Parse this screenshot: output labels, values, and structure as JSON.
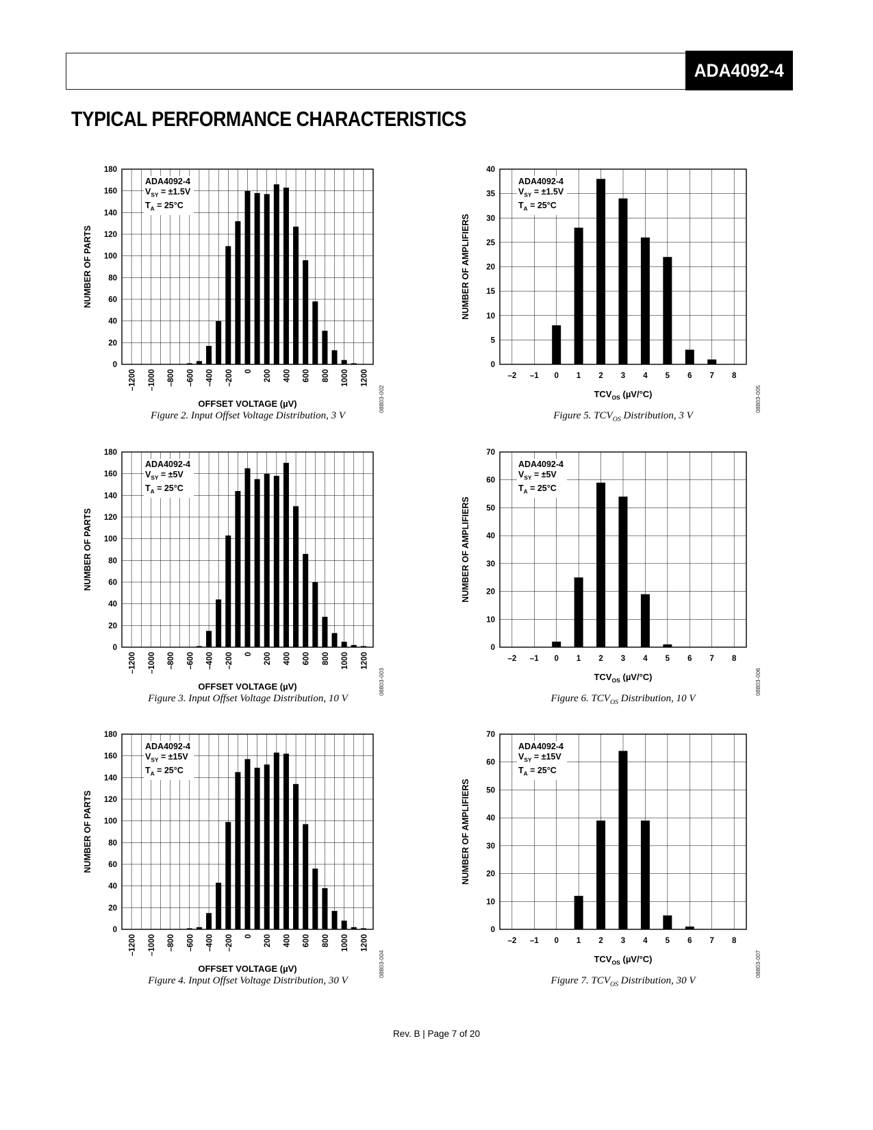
{
  "page": {
    "header_title": "ADA4092-4",
    "section_title": "TYPICAL PERFORMANCE CHARACTERISTICS",
    "footer": "Rev. B | Page 7 of 20"
  },
  "chart_data": [
    {
      "id": "fig2",
      "type": "bar",
      "kind": "offset",
      "title": "Input Offset Voltage Distribution, 3 V",
      "ylabel": "NUMBER OF PARTS",
      "xlabel_parts": [
        {
          "t": "OFFSET VOLTAGE (µV)"
        }
      ],
      "ylim": [
        0,
        180
      ],
      "ystep": 20,
      "xlim": [
        -1300,
        1300
      ],
      "xgrid_step": 100,
      "x_tick_values": [
        -1200,
        -1000,
        -800,
        -600,
        -400,
        -200,
        0,
        200,
        400,
        600,
        800,
        1000,
        1200
      ],
      "x_tick_labels": [
        "–1200",
        "–1000",
        "–800",
        "–600",
        "–400",
        "–200",
        "0",
        "200",
        "400",
        "600",
        "800",
        "1000",
        "1200"
      ],
      "bars_x": [
        -600,
        -500,
        -400,
        -300,
        -200,
        -100,
        0,
        100,
        200,
        300,
        400,
        500,
        600,
        700,
        800,
        900,
        1000,
        1100
      ],
      "bars_y": [
        1,
        3,
        17,
        40,
        109,
        132,
        160,
        158,
        157,
        166,
        163,
        127,
        96,
        58,
        31,
        13,
        4,
        1
      ],
      "annotation": [
        [
          {
            "t": "ADA4092-4"
          }
        ],
        [
          {
            "t": "V"
          },
          {
            "s": "SY"
          },
          {
            "t": " = ±1.5V"
          }
        ],
        [
          {
            "t": "T"
          },
          {
            "s": "A"
          },
          {
            "t": " = 25°C"
          }
        ]
      ],
      "caption_parts": [
        {
          "t": "Figure 2. Input Offset Voltage Distribution, 3 V"
        }
      ],
      "side_id": "08803-002"
    },
    {
      "id": "fig5",
      "type": "bar",
      "kind": "tcv",
      "title": "TCVOS Distribution, 3 V",
      "ylabel": "NUMBER OF AMPLIFIERS",
      "xlabel_parts": [
        {
          "t": "TCV"
        },
        {
          "s": "OS"
        },
        {
          "t": " (µV/°C)"
        }
      ],
      "ylim": [
        0,
        40
      ],
      "ystep": 5,
      "xlim": [
        -2.55,
        8.55
      ],
      "xgrid_step": 1,
      "x_tick_values": [
        -2,
        -1,
        0,
        1,
        2,
        3,
        4,
        5,
        6,
        7,
        8
      ],
      "x_tick_labels": [
        "–2",
        "–1",
        "0",
        "1",
        "2",
        "3",
        "4",
        "5",
        "6",
        "7",
        "8"
      ],
      "bars_x": [
        0,
        1,
        2,
        3,
        4,
        5,
        6,
        7
      ],
      "bars_y": [
        8,
        28,
        38,
        34,
        26,
        22,
        3,
        1
      ],
      "annotation": [
        [
          {
            "t": "ADA4092-4"
          }
        ],
        [
          {
            "t": "V"
          },
          {
            "s": "SY"
          },
          {
            "t": " = ±1.5V"
          }
        ],
        [
          {
            "t": "T"
          },
          {
            "s": "A"
          },
          {
            "t": " = 25°C"
          }
        ]
      ],
      "caption_parts": [
        {
          "t": "Figure 5. TCV"
        },
        {
          "s": "OS"
        },
        {
          "t": " Distribution, 3 V"
        }
      ],
      "side_id": "08803-005"
    },
    {
      "id": "fig3",
      "type": "bar",
      "kind": "offset",
      "title": "Input Offset Voltage Distribution, 10 V",
      "ylabel": "NUMBER OF PARTS",
      "xlabel_parts": [
        {
          "t": "OFFSET VOLTAGE (µV)"
        }
      ],
      "ylim": [
        0,
        180
      ],
      "ystep": 20,
      "xlim": [
        -1300,
        1300
      ],
      "xgrid_step": 100,
      "x_tick_values": [
        -1200,
        -1000,
        -800,
        -600,
        -400,
        -200,
        0,
        200,
        400,
        600,
        800,
        1000,
        1200
      ],
      "x_tick_labels": [
        "–1200",
        "–1000",
        "–800",
        "–600",
        "–400",
        "–200",
        "0",
        "200",
        "400",
        "600",
        "800",
        "1000",
        "1200"
      ],
      "bars_x": [
        -500,
        -400,
        -300,
        -200,
        -100,
        0,
        100,
        200,
        300,
        400,
        500,
        600,
        700,
        800,
        900,
        1000,
        1100,
        1200
      ],
      "bars_y": [
        1,
        15,
        44,
        103,
        144,
        165,
        155,
        160,
        158,
        170,
        130,
        86,
        60,
        28,
        13,
        5,
        2,
        1
      ],
      "annotation": [
        [
          {
            "t": "ADA4092-4"
          }
        ],
        [
          {
            "t": "V"
          },
          {
            "s": "SY"
          },
          {
            "t": " = ±5V"
          }
        ],
        [
          {
            "t": "T"
          },
          {
            "s": "A"
          },
          {
            "t": " = 25°C"
          }
        ]
      ],
      "caption_parts": [
        {
          "t": "Figure 3. Input Offset Voltage Distribution, 10 V"
        }
      ],
      "side_id": "08803-003"
    },
    {
      "id": "fig6",
      "type": "bar",
      "kind": "tcv",
      "title": "TCVOS Distribution, 10 V",
      "ylabel": "NUMBER OF AMPLIFIERS",
      "xlabel_parts": [
        {
          "t": "TCV"
        },
        {
          "s": "OS"
        },
        {
          "t": " (µV/°C)"
        }
      ],
      "ylim": [
        0,
        70
      ],
      "ystep": 10,
      "xlim": [
        -2.55,
        8.55
      ],
      "xgrid_step": 1,
      "x_tick_values": [
        -2,
        -1,
        0,
        1,
        2,
        3,
        4,
        5,
        6,
        7,
        8
      ],
      "x_tick_labels": [
        "–2",
        "–1",
        "0",
        "1",
        "2",
        "3",
        "4",
        "5",
        "6",
        "7",
        "8"
      ],
      "bars_x": [
        0,
        1,
        2,
        3,
        4,
        5
      ],
      "bars_y": [
        2,
        25,
        59,
        54,
        19,
        1
      ],
      "annotation": [
        [
          {
            "t": "ADA4092-4"
          }
        ],
        [
          {
            "t": "V"
          },
          {
            "s": "SY"
          },
          {
            "t": " = ±5V"
          }
        ],
        [
          {
            "t": "T"
          },
          {
            "s": "A"
          },
          {
            "t": " = 25°C"
          }
        ]
      ],
      "caption_parts": [
        {
          "t": "Figure 6. TCV"
        },
        {
          "s": "OS"
        },
        {
          "t": " Distribution, 10 V"
        }
      ],
      "side_id": "08803-006"
    },
    {
      "id": "fig4",
      "type": "bar",
      "kind": "offset",
      "title": "Input Offset Voltage Distribution, 30 V",
      "ylabel": "NUMBER OF PARTS",
      "xlabel_parts": [
        {
          "t": "OFFSET VOLTAGE (µV)"
        }
      ],
      "ylim": [
        0,
        180
      ],
      "ystep": 20,
      "xlim": [
        -1300,
        1300
      ],
      "xgrid_step": 100,
      "x_tick_values": [
        -1200,
        -1000,
        -800,
        -600,
        -400,
        -200,
        0,
        200,
        400,
        600,
        800,
        1000,
        1200
      ],
      "x_tick_labels": [
        "–1200",
        "–1000",
        "–800",
        "–600",
        "–400",
        "–200",
        "0",
        "200",
        "400",
        "600",
        "800",
        "1000",
        "1200"
      ],
      "bars_x": [
        -600,
        -500,
        -400,
        -300,
        -200,
        -100,
        0,
        100,
        200,
        300,
        400,
        500,
        600,
        700,
        800,
        900,
        1000,
        1100,
        1200
      ],
      "bars_y": [
        1,
        2,
        15,
        43,
        99,
        145,
        157,
        149,
        152,
        163,
        162,
        134,
        97,
        56,
        38,
        17,
        8,
        2,
        1
      ],
      "annotation": [
        [
          {
            "t": "ADA4092-4"
          }
        ],
        [
          {
            "t": "V"
          },
          {
            "s": "SY"
          },
          {
            "t": " = ±15V"
          }
        ],
        [
          {
            "t": "T"
          },
          {
            "s": "A"
          },
          {
            "t": " = 25°C"
          }
        ]
      ],
      "caption_parts": [
        {
          "t": "Figure 4. Input Offset Voltage Distribution, 30 V"
        }
      ],
      "side_id": "08803-004"
    },
    {
      "id": "fig7",
      "type": "bar",
      "kind": "tcv",
      "title": "TCVOS Distribution, 30 V",
      "ylabel": "NUMBER OF AMPLIFIERS",
      "xlabel_parts": [
        {
          "t": "TCV"
        },
        {
          "s": "OS"
        },
        {
          "t": " (µV/°C)"
        }
      ],
      "ylim": [
        0,
        70
      ],
      "ystep": 10,
      "xlim": [
        -2.55,
        8.55
      ],
      "xgrid_step": 1,
      "x_tick_values": [
        -2,
        -1,
        0,
        1,
        2,
        3,
        4,
        5,
        6,
        7,
        8
      ],
      "x_tick_labels": [
        "–2",
        "–1",
        "0",
        "1",
        "2",
        "3",
        "4",
        "5",
        "6",
        "7",
        "8"
      ],
      "bars_x": [
        1,
        2,
        3,
        4,
        5,
        6
      ],
      "bars_y": [
        12,
        39,
        64,
        39,
        5,
        1
      ],
      "annotation": [
        [
          {
            "t": "ADA4092-4"
          }
        ],
        [
          {
            "t": "V"
          },
          {
            "s": "SY"
          },
          {
            "t": " = ±15V"
          }
        ],
        [
          {
            "t": "T"
          },
          {
            "s": "A"
          },
          {
            "t": " = 25°C"
          }
        ]
      ],
      "caption_parts": [
        {
          "t": "Figure 7. TCV"
        },
        {
          "s": "OS"
        },
        {
          "t": " Distribution, 30 V"
        }
      ],
      "side_id": "08803-007"
    }
  ]
}
